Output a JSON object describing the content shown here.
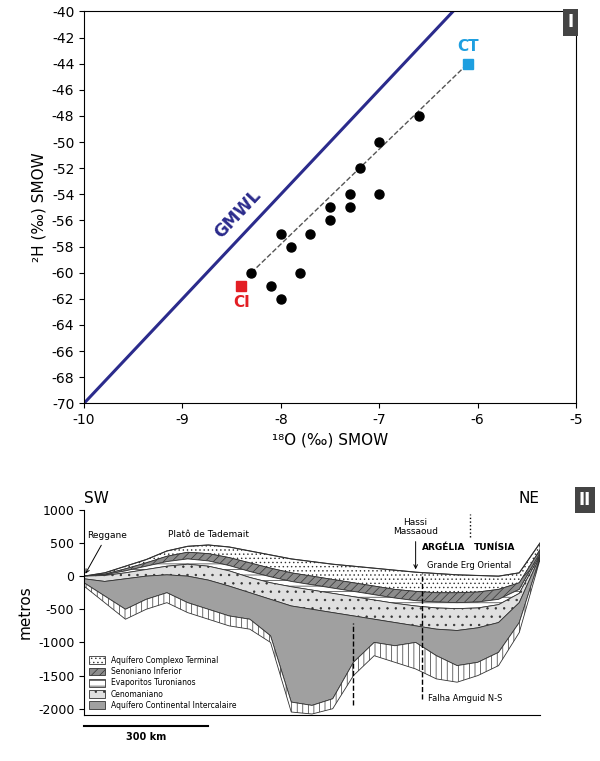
{
  "chart_data": [
    {
      "type": "scatter",
      "panel_label": "I",
      "xlabel": "¹⁸O (‰) SMOW",
      "ylabel": "²H (‰) SMOW",
      "xlim": [
        -10,
        -5
      ],
      "xticks": [
        -10,
        -9,
        -8,
        -7,
        -6,
        -5
      ],
      "ylim": [
        -70,
        -40
      ],
      "yticks": [
        -70,
        -68,
        -66,
        -64,
        -62,
        -60,
        -58,
        -56,
        -54,
        -52,
        -50,
        -48,
        -46,
        -44,
        -42,
        -40
      ],
      "grid": false,
      "series": [
        {
          "name": "GMWL",
          "type": "line",
          "color": "#2b2b8c",
          "line_style": "solid",
          "x": [
            -10,
            -6.25
          ],
          "values": [
            -70,
            -40
          ]
        },
        {
          "type": "line",
          "color": "#555555",
          "line_style": "dashed",
          "x": [
            -8.3,
            -6.1
          ],
          "values": [
            -60,
            -44
          ]
        },
        {
          "type": "scatter",
          "color": "#000000",
          "marker": "circle",
          "x": [
            -8.3,
            -8.1,
            -8.0,
            -8.0,
            -7.9,
            -7.8,
            -7.7,
            -7.5,
            -7.5,
            -7.3,
            -7.3,
            -7.2,
            -7.0,
            -7.0,
            -6.6
          ],
          "values": [
            -60,
            -61,
            -62,
            -57,
            -58,
            -60,
            -57,
            -55,
            -56,
            -55,
            -54,
            -52,
            -50,
            -54,
            -48
          ]
        },
        {
          "name": "CI",
          "type": "scatter",
          "color": "#e31e24",
          "marker": "square",
          "x": [
            -8.4
          ],
          "values": [
            -61
          ]
        },
        {
          "name": "CT",
          "type": "scatter",
          "color": "#1e9fe0",
          "marker": "square",
          "x": [
            -6.1
          ],
          "values": [
            -44
          ]
        }
      ]
    },
    {
      "type": "cross_section",
      "panel_label": "II",
      "ylabel": "metros",
      "corner_labels": [
        "SW",
        "NE"
      ],
      "tick_labels": "y",
      "xlim": [
        0,
        1100
      ],
      "ylim": [
        -2100,
        1000
      ],
      "yticks": [
        1000,
        500,
        0,
        -500,
        -1000,
        -1500,
        -2000
      ],
      "legend": "lower left",
      "x": [
        0,
        50,
        100,
        150,
        200,
        250,
        300,
        350,
        400,
        450,
        500,
        550,
        600,
        650,
        700,
        750,
        800,
        850,
        900,
        950,
        1000,
        1050,
        1100
      ],
      "surface": [
        0,
        50,
        150,
        250,
        380,
        450,
        470,
        440,
        380,
        320,
        260,
        220,
        180,
        150,
        120,
        90,
        60,
        40,
        20,
        10,
        0,
        50,
        500
      ],
      "series": [
        {
          "name": "Aquífero Complexo Terminal",
          "color": "#ffffff",
          "values": [
            0,
            30,
            110,
            200,
            300,
            360,
            340,
            280,
            200,
            120,
            50,
            0,
            -50,
            -100,
            -150,
            -200,
            -230,
            -250,
            -250,
            -240,
            -200,
            -100,
            400
          ]
        },
        {
          "name": "Senoniano Inferior",
          "color": "#8c8c8c",
          "values": [
            0,
            20,
            80,
            150,
            220,
            260,
            230,
            160,
            70,
            -10,
            -80,
            -130,
            -180,
            -230,
            -280,
            -330,
            -370,
            -390,
            -400,
            -390,
            -350,
            -200,
            350
          ]
        },
        {
          "name": "Evaporitos Turonianos",
          "color": "#ffffff",
          "values": [
            0,
            10,
            50,
            100,
            150,
            180,
            150,
            80,
            -20,
            -100,
            -160,
            -210,
            -260,
            -310,
            -360,
            -410,
            -450,
            -480,
            -490,
            -480,
            -430,
            -260,
            320
          ]
        },
        {
          "name": "Cenomaniano",
          "color": "#e0e0e0",
          "values": [
            -40,
            -80,
            -40,
            0,
            20,
            0,
            -60,
            -150,
            -250,
            -350,
            -450,
            -500,
            -550,
            -600,
            -650,
            -700,
            -750,
            -800,
            -820,
            -780,
            -700,
            -400,
            300
          ]
        },
        {
          "name": "Aquífero Continental Intercalaire",
          "color": "#a0a0a0",
          "values": [
            -100,
            -300,
            -500,
            -350,
            -250,
            -400,
            -500,
            -600,
            -650,
            -900,
            -1900,
            -1950,
            -1850,
            -1300,
            -1000,
            -1050,
            -1000,
            -1200,
            -1350,
            -1300,
            -1150,
            -700,
            280
          ]
        },
        {
          "color": "#ffffff",
          "values": [
            -150,
            -400,
            -650,
            -500,
            -400,
            -550,
            -650,
            -750,
            -800,
            -1000,
            -2050,
            -2080,
            -2000,
            -1500,
            -1200,
            -1300,
            -1400,
            -1550,
            -1600,
            -1500,
            -1350,
            -850,
            250
          ]
        }
      ],
      "places": [
        {
          "label": "Reggane",
          "x": 0,
          "arrow": true
        },
        {
          "label": "Platô de Tademait",
          "x": 300,
          "arrow": false
        },
        {
          "label": "Hassi\nMassaoud",
          "x": 800,
          "arrow": true
        },
        {
          "label": "Grande Erg Oriental",
          "x": 930,
          "arrow": false
        }
      ],
      "border": {
        "x": 930,
        "labels": [
          "ARGÉLIA",
          "TUNÍSIA"
        ]
      },
      "faults": [
        {
          "x": 650,
          "y": [
            -1950,
            -700
          ]
        },
        {
          "x": 815,
          "y": [
            -1850,
            50
          ]
        }
      ],
      "fault_label": "Falha Amguid N-S",
      "scale": {
        "value": 300,
        "label": "300 km"
      }
    }
  ]
}
